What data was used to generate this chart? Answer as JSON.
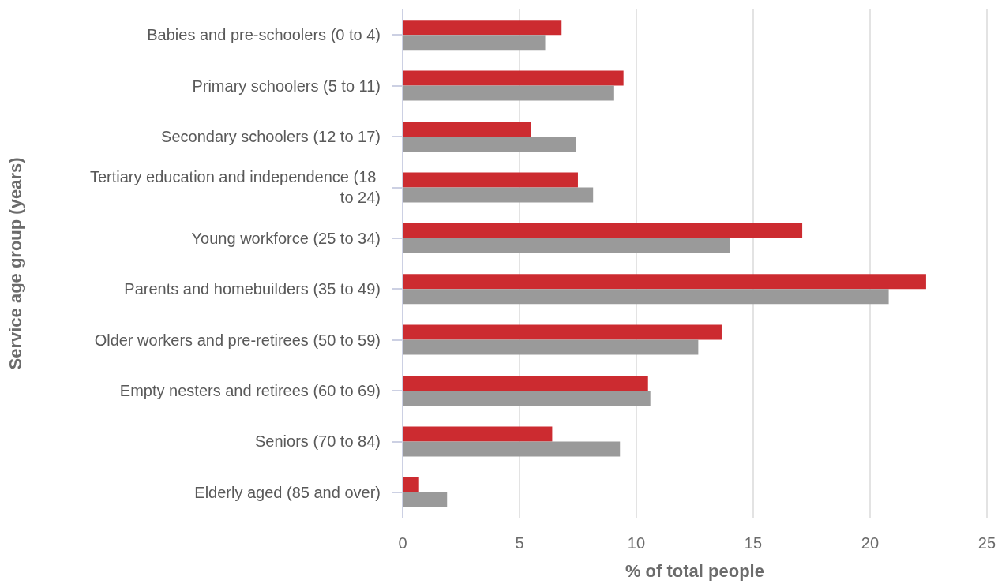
{
  "chart_data": {
    "type": "bar",
    "orientation": "horizontal",
    "xlabel": "% of total people",
    "ylabel": "Service age group (years)",
    "categories": [
      "Babies and pre-schoolers (0 to 4)",
      "Primary schoolers (5 to 11)",
      "Secondary schoolers (12 to 17)",
      "Tertiary education and independence (18 to 24)",
      "Young workforce (25 to 34)",
      "Parents and homebuilders (35 to 49)",
      "Older workers and pre-retirees (50 to 59)",
      "Empty nesters and retirees (60 to 69)",
      "Seniors (70 to 84)",
      "Elderly aged (85 and over)"
    ],
    "series": [
      {
        "color": "#cc2b30",
        "values": [
          6.8,
          9.45,
          5.5,
          7.5,
          17.1,
          22.4,
          13.65,
          10.5,
          6.4,
          0.7
        ]
      },
      {
        "color": "#9a9a9a",
        "values": [
          6.1,
          9.05,
          7.4,
          8.15,
          14.0,
          20.8,
          12.65,
          10.6,
          9.3,
          1.9
        ]
      }
    ],
    "xlim": [
      0,
      25
    ],
    "xticks": [
      0,
      5,
      10,
      15,
      20,
      25
    ],
    "grid": "x"
  }
}
